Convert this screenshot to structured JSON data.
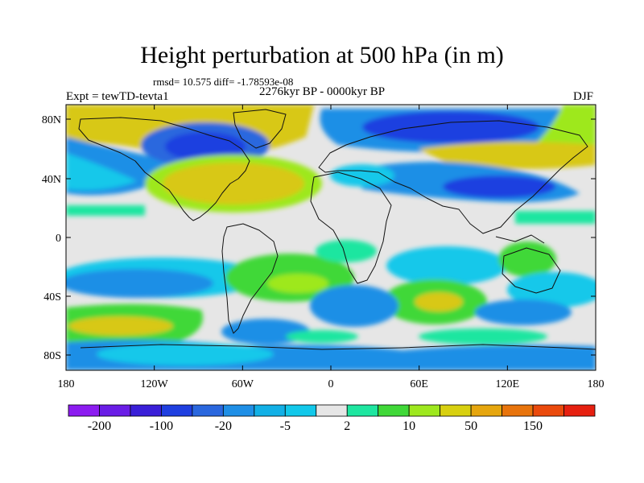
{
  "title": "Height perturbation at 500 hPa (in m)",
  "stats": "rmsd= 10.575 diff= -1.78593e-08",
  "period": "2276kyr BP - 0000kyr BP",
  "experiment": "Expt = tewTD-tevta1",
  "season": "DJF",
  "lat_labels": [
    "80N",
    "40N",
    "0",
    "40S",
    "80S"
  ],
  "lon_labels": [
    "180",
    "120W",
    "60W",
    "0",
    "60E",
    "120E",
    "180"
  ],
  "colorbar": {
    "colors": [
      "#8c1cf0",
      "#6a1de6",
      "#3a1fd8",
      "#1f3fe0",
      "#2a67de",
      "#1f8fe6",
      "#12b0e6",
      "#12c8ea",
      "#e6e6e6",
      "#1ee6a0",
      "#40d838",
      "#9ee81e",
      "#d8d010",
      "#e6a60e",
      "#e8740c",
      "#ea4a0c",
      "#e62010"
    ],
    "labels": [
      "-200",
      "-100",
      "-20",
      "-5",
      "2",
      "10",
      "50",
      "150"
    ]
  },
  "palette": {
    "neg_strong": "#2a3ee0",
    "neg": "#1f8fe6",
    "neg_weak": "#12c8ea",
    "neutral": "#e6e6e6",
    "pos_weak": "#1ee6a0",
    "pos": "#40d838",
    "pos_strong": "#9ee81e",
    "pos_stronger": "#d8c818"
  }
}
